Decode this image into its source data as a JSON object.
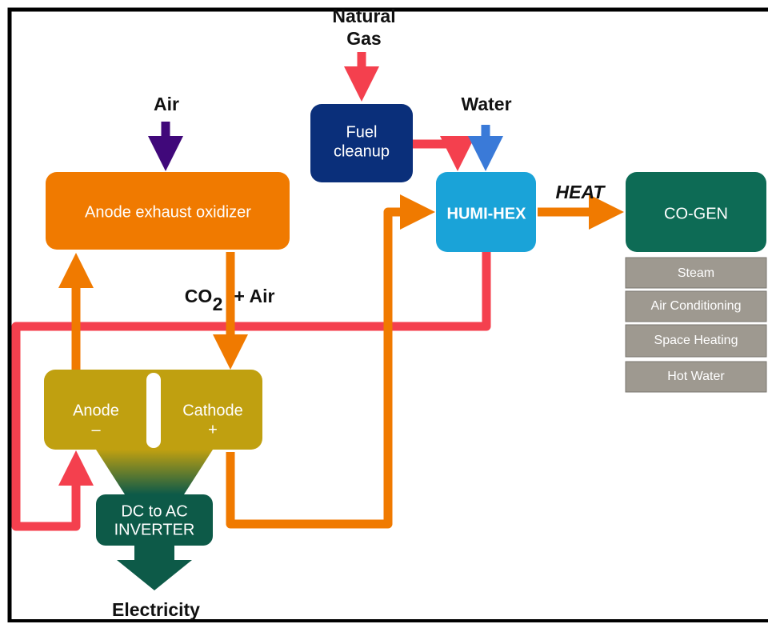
{
  "inputs": {
    "natural_gas": [
      "Natural",
      "Gas"
    ],
    "air": "Air",
    "water": "Water"
  },
  "nodes": {
    "fuel_cleanup": [
      "Fuel",
      "cleanup"
    ],
    "oxidizer": "Anode exhaust oxidizer",
    "humi_hex": "HUMI-HEX",
    "cogen": "CO-GEN",
    "anode": [
      "Anode",
      "–"
    ],
    "cathode": [
      "Cathode",
      "+"
    ],
    "inverter": [
      "DC to AC",
      "INVERTER"
    ]
  },
  "heat_label": "HEAT",
  "co2_label": {
    "base": "CO",
    "sub": "2",
    "rest": "+ Air"
  },
  "uses": [
    "Steam",
    "Air Conditioning",
    "Space Heating",
    "Hot Water"
  ],
  "output": "Electricity"
}
